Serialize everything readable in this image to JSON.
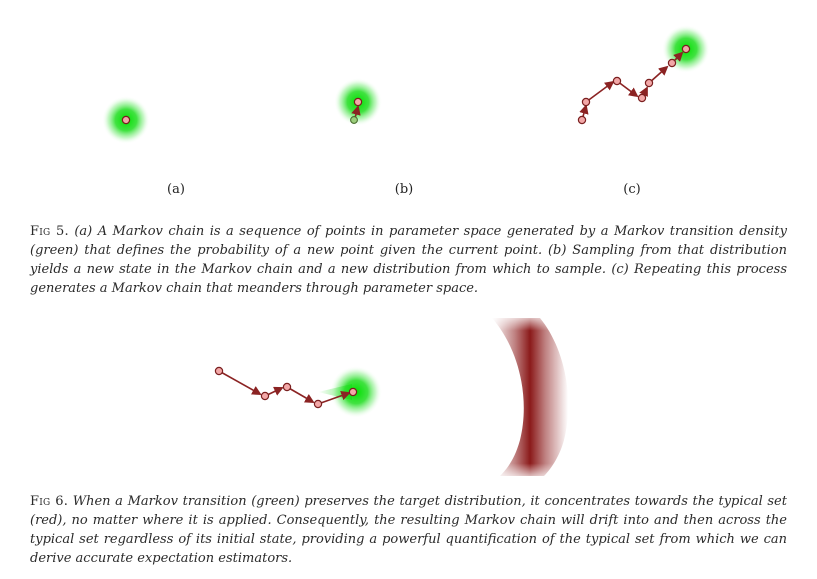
{
  "figure5": {
    "panels": [
      {
        "label": "(a)"
      },
      {
        "label": "(b)"
      },
      {
        "label": "(c)"
      }
    ],
    "caption_label": "Fig 5.",
    "caption_text": "(a) A Markov chain is a sequence of points in parameter space generated by a Markov transition density (green) that defines the probability of a new point given the current point. (b) Sampling from that distribution yields a new state in the Markov chain and a new distribution from which to sample. (c) Repeating this process generates a Markov chain that meanders through parameter space."
  },
  "figure6": {
    "caption_label": "Fig 6.",
    "caption_text": "When a Markov transition (green) preserves the target distribution, it concentrates towards the typical set (red), no matter where it is applied. Consequently, the resulting Markov chain will drift into and then across the typical set regardless of its initial state, providing a powerful quantification of the typical set from which we can derive accurate expectation estimators."
  },
  "colors": {
    "transition_density": "#1fd11f",
    "chain_point_fill": "#f2a8a8",
    "chain_line": "#8b2323",
    "typical_set": "#8b1a1a",
    "new_point_fill": "#9acd7a"
  }
}
